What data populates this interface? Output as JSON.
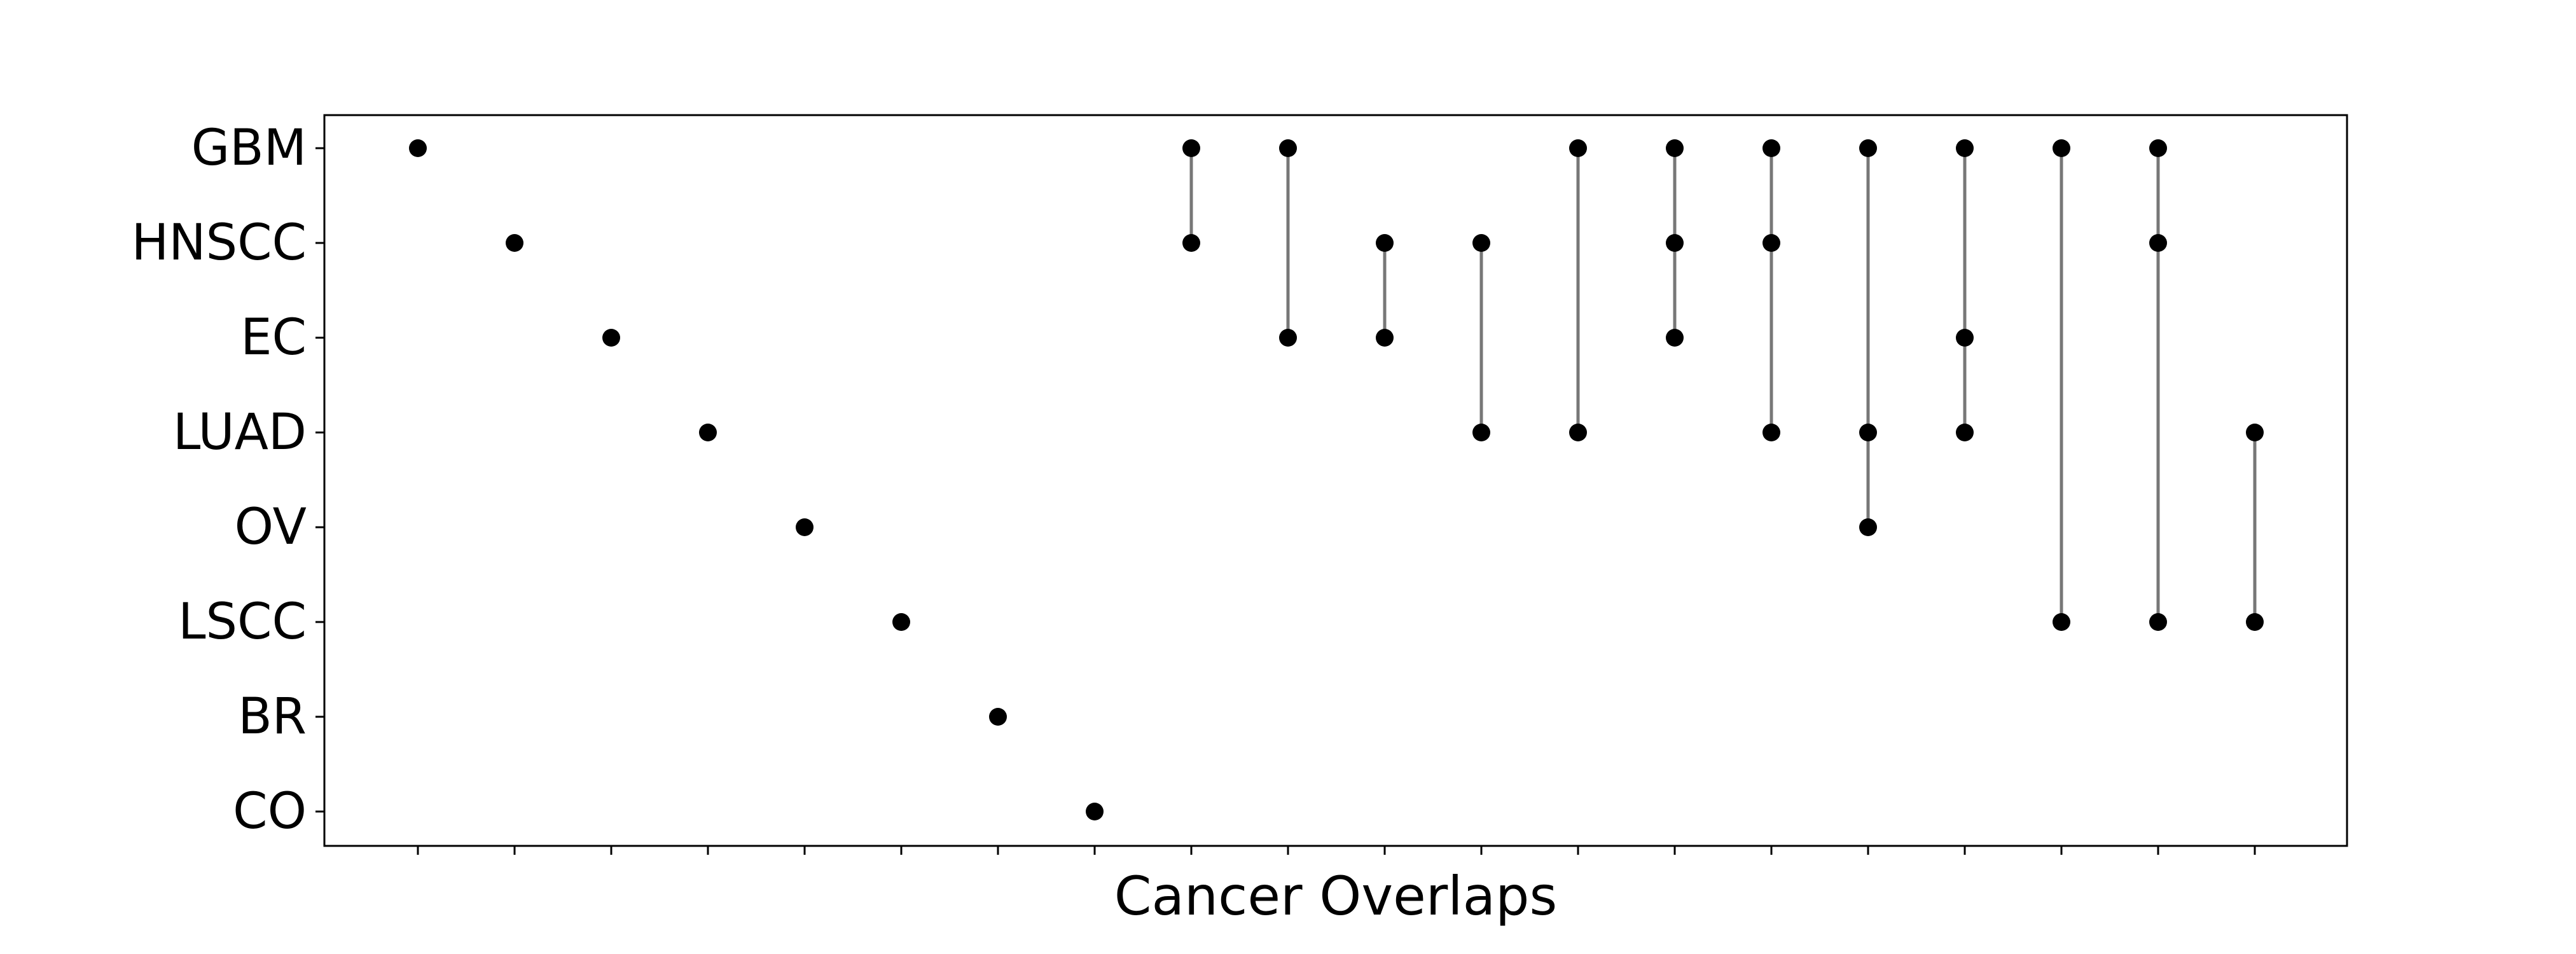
{
  "chart_data": {
    "type": "scatter",
    "subtype": "upset-matrix",
    "title": "",
    "xlabel": "Cancer Overlaps",
    "ylabel": "",
    "sets": [
      "GBM",
      "HNSCC",
      "EC",
      "LUAD",
      "OV",
      "LSCC",
      "BR",
      "CO"
    ],
    "combinations": [
      [
        "GBM"
      ],
      [
        "HNSCC"
      ],
      [
        "EC"
      ],
      [
        "LUAD"
      ],
      [
        "OV"
      ],
      [
        "LSCC"
      ],
      [
        "BR"
      ],
      [
        "CO"
      ],
      [
        "GBM",
        "HNSCC"
      ],
      [
        "GBM",
        "EC"
      ],
      [
        "HNSCC",
        "EC"
      ],
      [
        "HNSCC",
        "LUAD"
      ],
      [
        "GBM",
        "LUAD"
      ],
      [
        "GBM",
        "HNSCC",
        "EC"
      ],
      [
        "GBM",
        "HNSCC",
        "LUAD"
      ],
      [
        "GBM",
        "LUAD",
        "OV"
      ],
      [
        "GBM",
        "EC",
        "LUAD"
      ],
      [
        "GBM",
        "LSCC"
      ],
      [
        "GBM",
        "HNSCC",
        "LSCC"
      ],
      [
        "LUAD",
        "LSCC"
      ]
    ],
    "x_tick_labels": false,
    "grid": false,
    "legend": "none",
    "colors": {
      "dot": "#000000",
      "connector": "#777777",
      "axis": "#000000"
    }
  }
}
